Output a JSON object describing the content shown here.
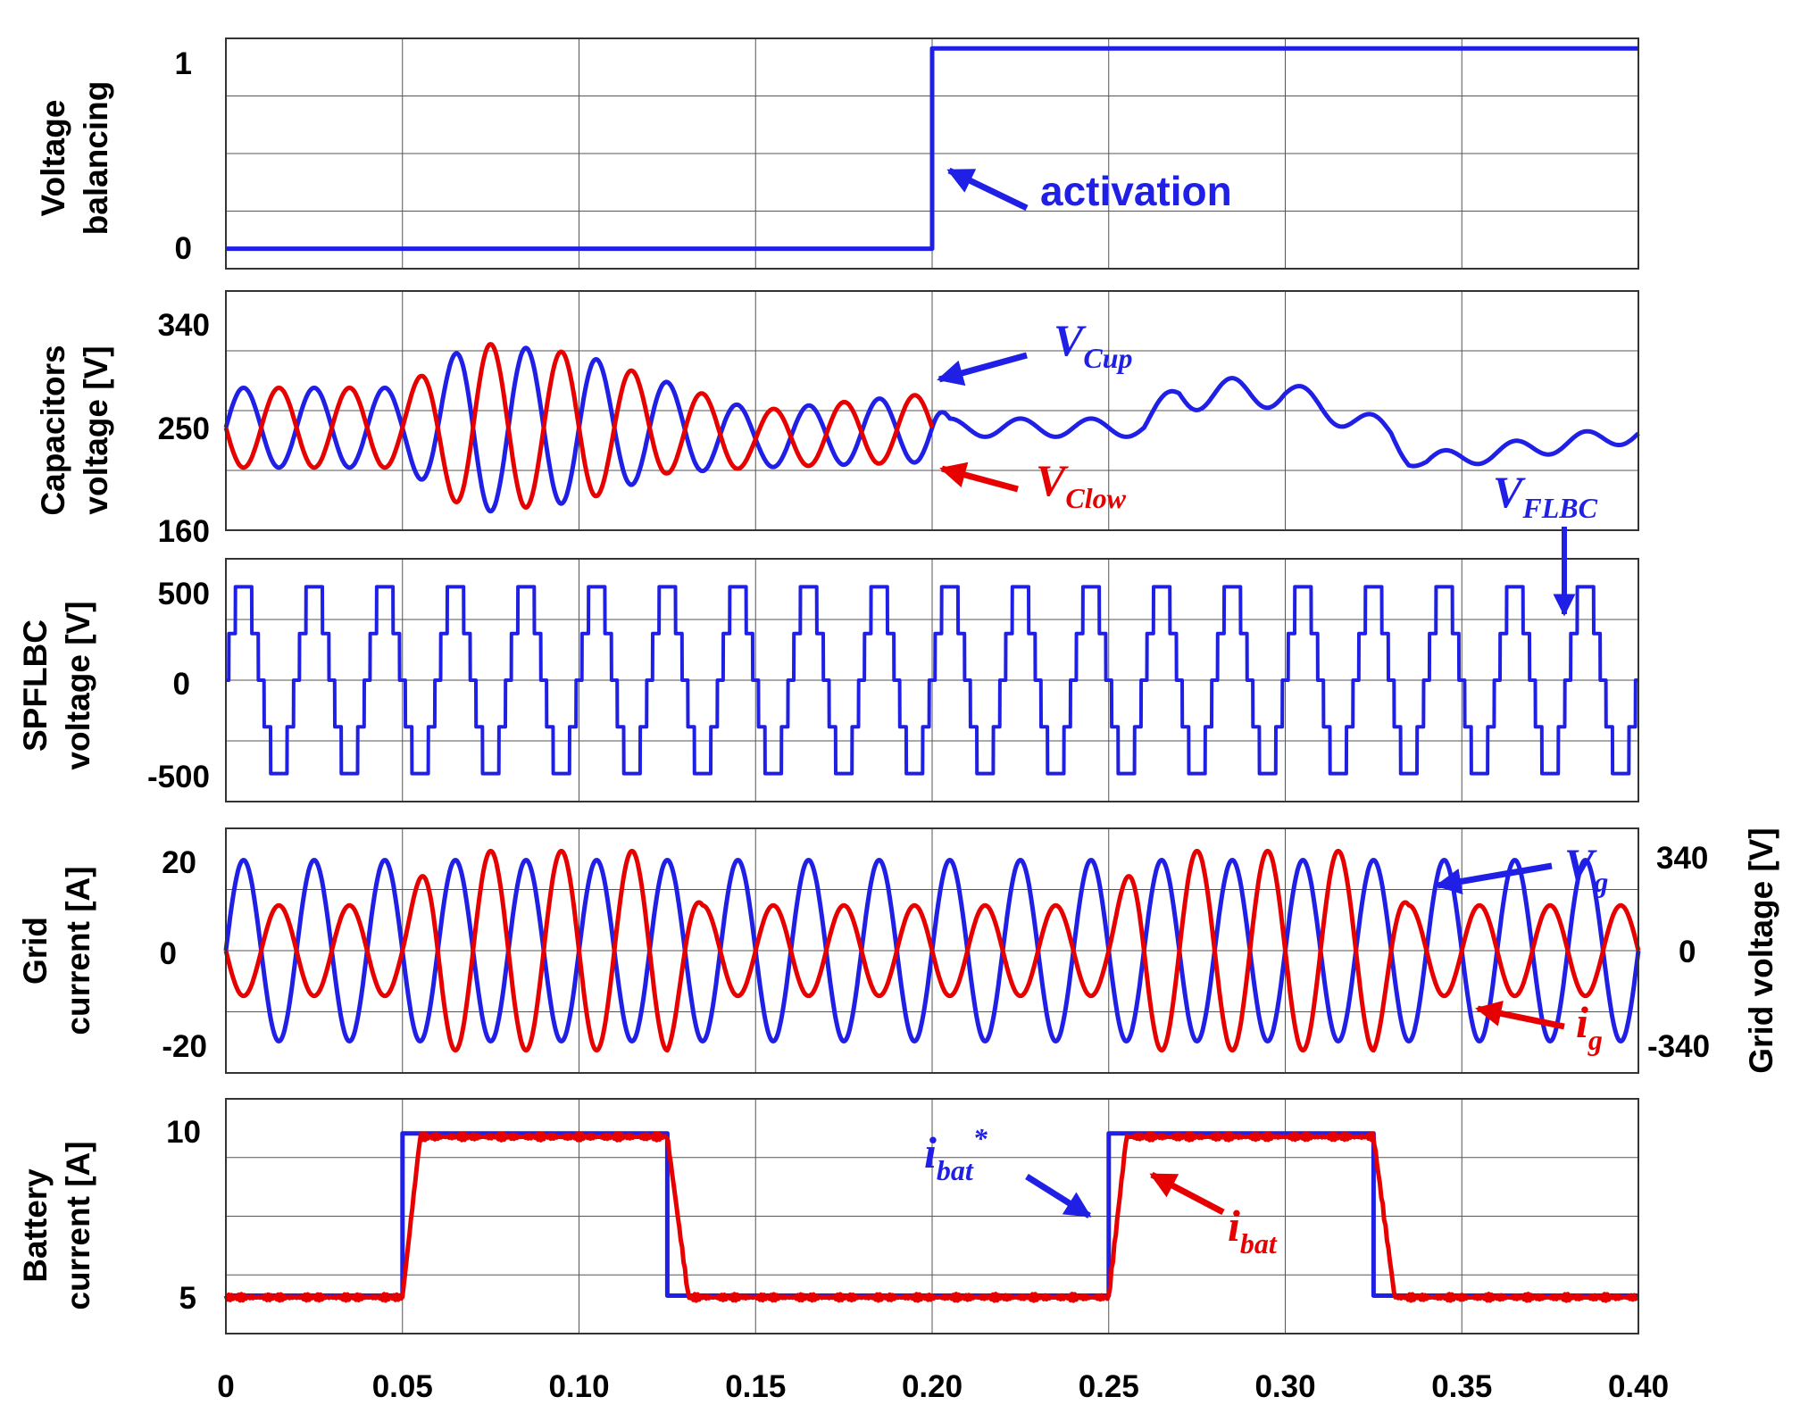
{
  "chart_data": [
    {
      "type": "line",
      "ylabel": [
        "Voltage",
        "balancing"
      ],
      "yticks": [
        0,
        1
      ],
      "ylim": [
        -0.1,
        1.05
      ],
      "xlim": [
        0,
        0.4
      ],
      "grid": true,
      "series": [
        {
          "key": "balancing",
          "color": "#1f1fe6",
          "x": [
            0,
            0.2,
            0.2,
            0.4
          ],
          "y": [
            0,
            0,
            1,
            1
          ]
        }
      ],
      "annotations": [
        {
          "text": "activation",
          "color": "#1f1fe6",
          "points_to": [
            0.2,
            0.45
          ]
        }
      ]
    },
    {
      "type": "line",
      "ylabel": [
        "Capacitors",
        "voltage [V]"
      ],
      "yticks": [
        160,
        250,
        340
      ],
      "ylim": [
        160,
        370
      ],
      "xlim": [
        0,
        0.4
      ],
      "grid": true,
      "series": [
        {
          "key": "V_Cup",
          "color": "#1f1fe6",
          "x": [
            0,
            0.05,
            0.07,
            0.1,
            0.125,
            0.15,
            0.2,
            0.205,
            0.26,
            0.27,
            0.3,
            0.33,
            0.335,
            0.34,
            0.4
          ],
          "y": [
            250,
            250,
            250,
            250,
            250,
            240,
            250,
            250,
            250,
            280,
            280,
            245,
            225,
            220,
            245
          ],
          "amplitude": [
            35,
            35,
            75,
            65,
            40,
            25,
            30,
            8,
            8,
            15,
            12,
            10,
            8,
            8,
            8
          ],
          "frequency_hz": 50,
          "phase": 0
        },
        {
          "key": "V_Clow",
          "color": "#e60000",
          "x": [
            0,
            0.05,
            0.07,
            0.1,
            0.125,
            0.15,
            0.2
          ],
          "y": [
            250,
            250,
            250,
            250,
            250,
            240,
            250
          ],
          "amplitude": [
            35,
            35,
            75,
            65,
            40,
            25,
            30
          ],
          "frequency_hz": 50,
          "phase": 3.14159
        }
      ],
      "annotations": [
        {
          "symbol": "V",
          "sub": "Cup",
          "color": "#1f1fe6"
        },
        {
          "symbol": "V",
          "sub": "Clow",
          "color": "#e60000"
        }
      ]
    },
    {
      "type": "line",
      "ylabel": [
        "SPFLBC",
        "voltage [V]"
      ],
      "yticks": [
        -500,
        0,
        500
      ],
      "ylim": [
        -650,
        650
      ],
      "xlim": [
        0,
        0.4
      ],
      "grid": true,
      "series": [
        {
          "key": "V_FLBC",
          "color": "#1f1fe6",
          "levels": [
            -500,
            -250,
            0,
            250,
            500
          ],
          "frequency_hz": 50
        }
      ],
      "annotations": [
        {
          "symbol": "V",
          "sub": "FLBC",
          "color": "#1f1fe6"
        }
      ]
    },
    {
      "type": "line",
      "ylabel": [
        "Grid",
        "current [A]"
      ],
      "ylabel_right": "Grid voltage [V]",
      "yticks": [
        -20,
        0,
        20
      ],
      "yticks_right": [
        -340,
        0,
        340
      ],
      "ylim": [
        -27,
        27
      ],
      "xlim": [
        0,
        0.4
      ],
      "grid": true,
      "series": [
        {
          "key": "V_g",
          "color": "#1f1fe6",
          "amplitude_A": 20,
          "frequency_hz": 50,
          "phase": 0
        },
        {
          "key": "i_g",
          "color": "#e60000",
          "frequency_hz": 50,
          "phase": 3.14159,
          "x": [
            0,
            0.05,
            0.06,
            0.125,
            0.135,
            0.25,
            0.26,
            0.325,
            0.335,
            0.4
          ],
          "amplitude": [
            10,
            10,
            22,
            22,
            10,
            10,
            22,
            22,
            10,
            10
          ]
        }
      ],
      "annotations": [
        {
          "symbol": "V",
          "sub": "g",
          "color": "#1f1fe6"
        },
        {
          "symbol": "i",
          "sub": "g",
          "color": "#e60000"
        }
      ]
    },
    {
      "type": "line",
      "ylabel": [
        "Battery",
        "current [A]"
      ],
      "yticks": [
        5,
        10
      ],
      "ylim": [
        3.7,
        10.5
      ],
      "xlim": [
        0,
        0.4
      ],
      "xticks": [
        0,
        0.05,
        0.1,
        0.15,
        0.2,
        0.25,
        0.3,
        0.35,
        0.4
      ],
      "xticklabels": [
        "0",
        "0.05",
        "0.10",
        "0.15",
        "0.20",
        "0.25",
        "0.30",
        "0.35",
        "0.40"
      ],
      "grid": true,
      "series": [
        {
          "key": "i_bat_ref",
          "color": "#1f1fe6",
          "x": [
            0,
            0.05,
            0.05,
            0.125,
            0.125,
            0.25,
            0.25,
            0.325,
            0.325,
            0.4
          ],
          "y": [
            4.8,
            4.8,
            9.5,
            9.5,
            4.8,
            4.8,
            9.5,
            9.5,
            4.8,
            4.8
          ]
        },
        {
          "key": "i_bat",
          "color": "#e60000",
          "x": [
            0,
            0.05,
            0.055,
            0.125,
            0.131,
            0.25,
            0.255,
            0.325,
            0.331,
            0.4
          ],
          "y": [
            4.75,
            4.75,
            9.4,
            9.4,
            4.75,
            4.75,
            9.4,
            9.4,
            4.75,
            4.75
          ]
        }
      ],
      "annotations": [
        {
          "symbol": "i",
          "sub": "bat",
          "sup": "*",
          "color": "#1f1fe6"
        },
        {
          "symbol": "i",
          "sub": "bat",
          "color": "#e60000"
        }
      ]
    }
  ]
}
